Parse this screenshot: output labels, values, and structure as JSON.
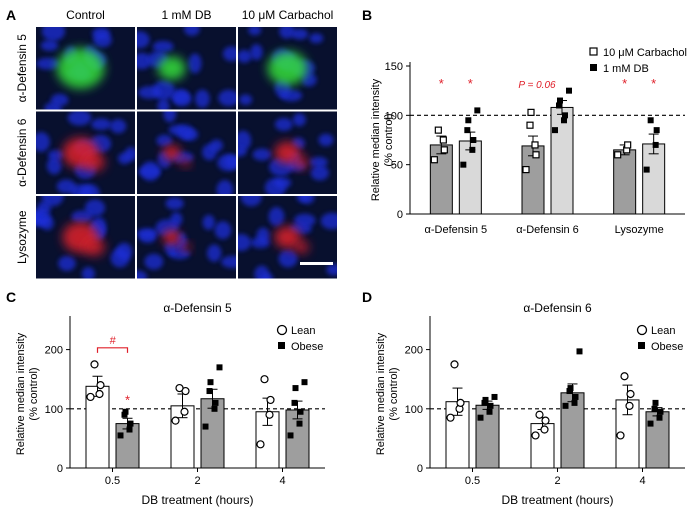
{
  "panel_a": {
    "letter": "A",
    "columns": [
      "Control",
      "1 mM DB",
      "10 μM Carbachol"
    ],
    "rows": [
      "α-Defensin 5",
      "α-Defensin 6",
      "Lysozyme"
    ],
    "colors": {
      "nucleus": "#1e2fd8",
      "defensin5": "#36e03a",
      "defensin6": "#e0202a",
      "background": "#08102e"
    }
  },
  "chart_data": [
    {
      "panel": "B",
      "type": "bar",
      "title": "",
      "ylabel": "Relative median intensity\n(% control)",
      "xlabel": "",
      "categories": [
        "α-Defensin 5",
        "α-Defensin 6",
        "Lysozyme"
      ],
      "ylim": [
        0,
        150
      ],
      "yticks": [
        0,
        50,
        100,
        150
      ],
      "reference_line": 100,
      "legend": {
        "position": "top-right"
      },
      "series": [
        {
          "name": "10 μM Carbachol",
          "color": "#9e9e9e",
          "marker": "open-square",
          "values": [
            70,
            69,
            65
          ],
          "errors": [
            9,
            10,
            5
          ],
          "points": [
            [
              55,
              75,
              65,
              85
            ],
            [
              45,
              70,
              60,
              90,
              103
            ],
            [
              60,
              65,
              70
            ]
          ]
        },
        {
          "name": "1 mM DB",
          "color": "#d9d9d9",
          "marker": "filled-square",
          "values": [
            74,
            108,
            71
          ],
          "errors": [
            9,
            7,
            10
          ],
          "points": [
            [
              50,
              65,
              75,
              85,
              95,
              105
            ],
            [
              85,
              95,
              100,
              110,
              115,
              125
            ],
            [
              45,
              70,
              85,
              95
            ]
          ]
        }
      ],
      "annotations": [
        {
          "text": "*",
          "category": 0,
          "series": 0,
          "color": "#e0202a"
        },
        {
          "text": "*",
          "category": 0,
          "series": 1,
          "color": "#e0202a"
        },
        {
          "text": "P = 0.06",
          "category": 1,
          "series": 0,
          "color": "#e0202a"
        },
        {
          "text": "*",
          "category": 2,
          "series": 0,
          "color": "#e0202a"
        },
        {
          "text": "*",
          "category": 2,
          "series": 1,
          "color": "#e0202a"
        }
      ]
    },
    {
      "panel": "C",
      "type": "bar",
      "title": "α-Defensin 5",
      "xlabel": "DB treatment (hours)",
      "ylabel": "Relative median intensity\n(% control)",
      "categories": [
        "0.5",
        "2",
        "4"
      ],
      "ylim": [
        0,
        250
      ],
      "yticks": [
        0,
        100,
        200
      ],
      "reference_line": 100,
      "legend": {
        "position": "top-right"
      },
      "series": [
        {
          "name": "Lean",
          "color": "#ffffff",
          "marker": "open-circle",
          "values": [
            138,
            105,
            95
          ],
          "errors": [
            17,
            20,
            23
          ],
          "points": [
            [
              120,
              125,
              140,
              175
            ],
            [
              80,
              95,
              130,
              135
            ],
            [
              40,
              90,
              115,
              150
            ]
          ]
        },
        {
          "name": "Obese",
          "color": "#9e9e9e",
          "marker": "filled-square",
          "values": [
            75,
            117,
            98
          ],
          "errors": [
            9,
            16,
            15
          ],
          "points": [
            [
              55,
              65,
              75,
              90,
              95
            ],
            [
              70,
              100,
              110,
              130,
              145,
              170
            ],
            [
              55,
              75,
              95,
              110,
              135,
              145
            ]
          ]
        }
      ],
      "annotations": [
        {
          "text": "#",
          "between": [
            0,
            0,
            1
          ],
          "color": "#e0202a"
        },
        {
          "text": "*",
          "category": 0,
          "series": 1,
          "color": "#e0202a"
        }
      ]
    },
    {
      "panel": "D",
      "type": "bar",
      "title": "α-Defensin 6",
      "xlabel": "DB treatment (hours)",
      "ylabel": "Relative median intensity\n(% control)",
      "categories": [
        "0.5",
        "2",
        "4"
      ],
      "ylim": [
        0,
        250
      ],
      "yticks": [
        0,
        100,
        200
      ],
      "reference_line": 100,
      "legend": {
        "position": "top-right"
      },
      "series": [
        {
          "name": "Lean",
          "color": "#ffffff",
          "marker": "open-circle",
          "values": [
            112,
            75,
            115
          ],
          "errors": [
            23,
            10,
            25
          ],
          "points": [
            [
              85,
              100,
              110,
              175
            ],
            [
              55,
              65,
              80,
              90
            ],
            [
              55,
              105,
              125,
              155
            ]
          ]
        },
        {
          "name": "Obese",
          "color": "#9e9e9e",
          "marker": "filled-square",
          "values": [
            106,
            127,
            95
          ],
          "errors": [
            7,
            15,
            7
          ],
          "points": [
            [
              85,
              95,
              105,
              110,
              115,
              120
            ],
            [
              105,
              110,
              120,
              130,
              135,
              197
            ],
            [
              75,
              85,
              95,
              100,
              110
            ]
          ]
        }
      ],
      "annotations": []
    }
  ]
}
